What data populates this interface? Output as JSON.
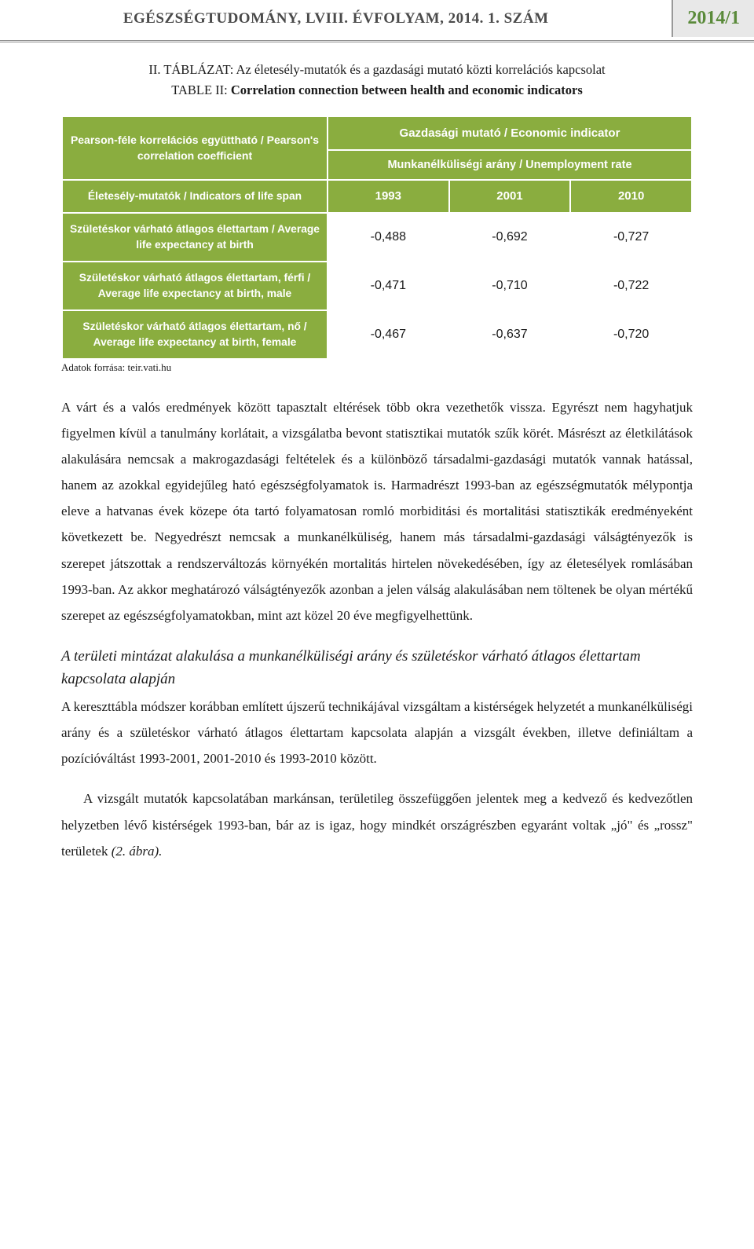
{
  "header": {
    "journal_line": "EGÉSZSÉGTUDOMÁNY, LVIII. ÉVFOLYAM, 2014. 1. SZÁM",
    "badge": "2014/1"
  },
  "table_caption": {
    "line1_prefix": "II. TÁBLÁZAT: ",
    "line1_rest": "Az életesély-mutatók és a gazdasági mutató közti korrelációs kapcsolat",
    "line2_prefix": "TABLE II: ",
    "line2_rest": "Correlation connection between health and economic indicators"
  },
  "corr_table": {
    "type": "table",
    "header_bg": "#8aad3f",
    "header_color": "#ffffff",
    "cell_bg": "#ffffff",
    "cell_color": "#1a1a1a",
    "border_color": "#ffffff",
    "corner": "Pearson-féle korrelációs együttható / Pearson's correlation coefficient",
    "top_header": "Gazdasági mutató / Economic indicator",
    "sub_header": "Munkanélküliségi arány / Unemployment rate",
    "year_row_label": "Életesély-mutatók / Indicators of life span",
    "years": [
      "1993",
      "2001",
      "2010"
    ],
    "rows": [
      {
        "label": "Születéskor várható átlagos élettartam / Average life expectancy at birth",
        "values": [
          "-0,488",
          "-0,692",
          "-0,727"
        ]
      },
      {
        "label": "Születéskor várható átlagos élettartam, férfi / Average life expectancy at birth, male",
        "values": [
          "-0,471",
          "-0,710",
          "-0,722"
        ]
      },
      {
        "label": "Születéskor várható átlagos élettartam, nő / Average life expectancy at birth, female",
        "values": [
          "-0,467",
          "-0,637",
          "-0,720"
        ]
      }
    ]
  },
  "source_note": "Adatok forrása: teir.vati.hu",
  "paragraphs": {
    "p1": "A várt és a valós eredmények között tapasztalt eltérések több okra vezethetők vissza. Egyrészt nem hagyhatjuk figyelmen kívül a tanulmány korlátait, a vizsgálatba bevont statisztikai mutatók szűk körét. Másrészt az életkilátások alakulására nemcsak a makrogazdasági feltételek és a különböző társadalmi-gazdasági mutatók vannak hatással, hanem az azokkal egyidejűleg ható egészségfolyamatok is. Harmadrészt 1993-ban az egészségmutatók mélypontja eleve a hatvanas évek közepe óta tartó folyamatosan romló morbiditási és mortalitási statisztikák eredményeként következett be. Negyedrészt nemcsak a munkanélküliség, hanem más társadalmi-gazdasági válságtényezők is szerepet játszottak a rendszerváltozás környékén mortalitás hirtelen növekedésében, így az életesélyek romlásában 1993-ban. Az akkor meghatározó válságtényezők azonban a jelen válság alakulásában nem töltenek be olyan mértékű szerepet az egészségfolyamatokban, mint azt közel 20 éve megfigyelhettünk.",
    "heading": "A területi mintázat alakulása a munkanélküliségi arány és születéskor várható átlagos élettartam kapcsolata alapján",
    "p2": "A kereszttábla módszer korábban említett újszerű technikájával vizsgáltam a kistérségek helyzetét a munkanélküliségi arány és a születéskor várható átlagos élettartam kapcsolata alapján a vizsgált években, illetve definiáltam a pozícióváltást 1993-2001, 2001-2010 és 1993-2010 között.",
    "p3_main": "A vizsgált mutatók kapcsolatában markánsan, területileg összefüggően jelentek meg a kedvező és kedvezőtlen helyzetben lévő kistérségek 1993-ban, bár az is igaz, hogy mindkét országrészben egyaránt voltak „jó\" és „rossz\" területek ",
    "p3_italic": "(2. ábra)."
  }
}
